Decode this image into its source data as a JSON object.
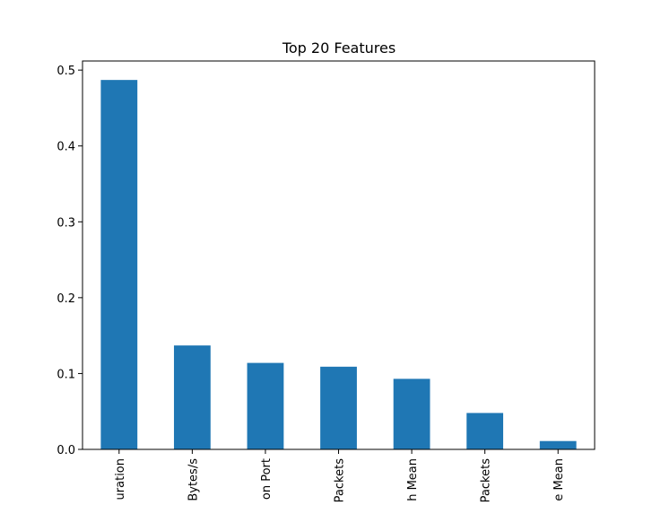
{
  "chart_data": {
    "type": "bar",
    "title": "Top 20 Features",
    "xlabel": "",
    "ylabel": "",
    "categories": [
      "uration",
      "Bytes/s",
      "on Port",
      "Packets",
      "h Mean",
      "Packets",
      "e Mean"
    ],
    "values": [
      0.487,
      0.137,
      0.114,
      0.109,
      0.093,
      0.048,
      0.011
    ],
    "ylim": [
      0,
      0.512
    ],
    "yticks": [
      0.0,
      0.1,
      0.2,
      0.3,
      0.4,
      0.5
    ],
    "ytick_labels": [
      "0.0",
      "0.1",
      "0.2",
      "0.3",
      "0.4",
      "0.5"
    ],
    "bar_color": "#1f77b4",
    "grid": false,
    "legend": "none"
  }
}
